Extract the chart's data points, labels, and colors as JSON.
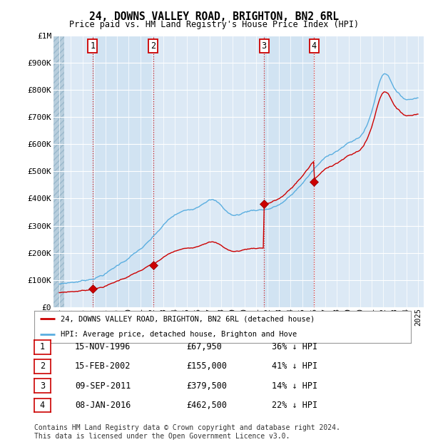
{
  "title": "24, DOWNS VALLEY ROAD, BRIGHTON, BN2 6RL",
  "subtitle": "Price paid vs. HM Land Registry's House Price Index (HPI)",
  "ylim": [
    0,
    1000000
  ],
  "ytick_labels": [
    "£0",
    "£100K",
    "£200K",
    "£300K",
    "£400K",
    "£500K",
    "£600K",
    "£700K",
    "£800K",
    "£900K",
    "£1M"
  ],
  "ytick_values": [
    0,
    100000,
    200000,
    300000,
    400000,
    500000,
    600000,
    700000,
    800000,
    900000,
    1000000
  ],
  "chart_bg_color": "#dce9f5",
  "sale_dates_num": [
    1996.875,
    2002.125,
    2011.69,
    2016.03
  ],
  "sale_prices": [
    67950,
    155000,
    379500,
    462500
  ],
  "sale_labels": [
    "1",
    "2",
    "3",
    "4"
  ],
  "sale_line_color": "#cc0000",
  "hpi_line_color": "#5aaee0",
  "vline_color": "#cc0000",
  "legend_sale_label": "24, DOWNS VALLEY ROAD, BRIGHTON, BN2 6RL (detached house)",
  "legend_hpi_label": "HPI: Average price, detached house, Brighton and Hove",
  "table_entries": [
    [
      "1",
      "15-NOV-1996",
      "£67,950",
      "36% ↓ HPI"
    ],
    [
      "2",
      "15-FEB-2002",
      "£155,000",
      "41% ↓ HPI"
    ],
    [
      "3",
      "09-SEP-2011",
      "£379,500",
      "14% ↓ HPI"
    ],
    [
      "4",
      "08-JAN-2016",
      "£462,500",
      "22% ↓ HPI"
    ]
  ],
  "footnote": "Contains HM Land Registry data © Crown copyright and database right 2024.\nThis data is licensed under the Open Government Licence v3.0.",
  "xlim_left": 1993.5,
  "xlim_right": 2025.5
}
